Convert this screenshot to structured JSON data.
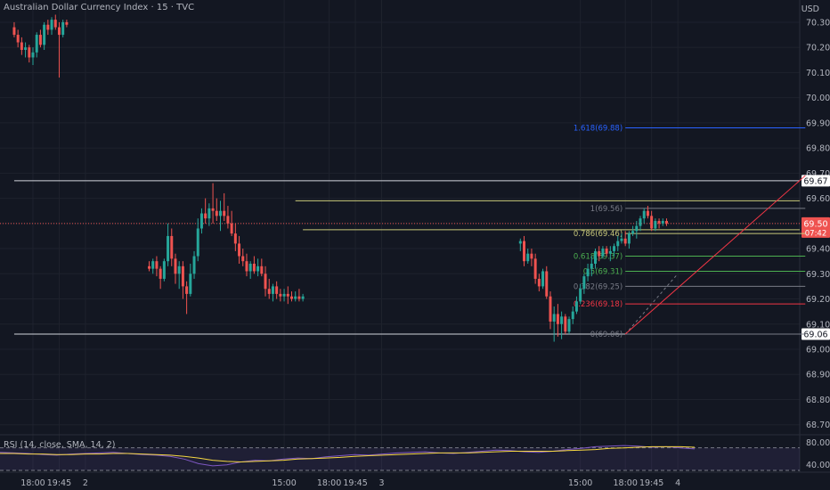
{
  "legend": {
    "symbol": "Australian Dollar Currency Index",
    "interval": "15",
    "exchange": "TVC",
    "separator": " · "
  },
  "currency": "USD",
  "rsi_legend": "RSI (14, close, SMA, 14, 2)",
  "colors": {
    "background": "#131722",
    "up": "#26a69a",
    "down": "#ef5350",
    "grid": "#1e222d",
    "axis_text": "#b2b5be",
    "fib_top": "#2962ff",
    "fib_yellow": "#c8c87a",
    "fib_green": "#4caf50",
    "fib_red": "#f23645",
    "trendline": "#f23645",
    "rsi_line": "#7e57c2",
    "rsi_ma": "#f5d742",
    "rsi_band": "#7e57c2"
  },
  "chart_data": {
    "type": "candlestick",
    "y_axis": {
      "range": [
        68.66,
        70.36
      ],
      "ticks": [
        "70.30",
        "70.20",
        "70.10",
        "70.00",
        "69.90",
        "69.80",
        "69.70",
        "69.60",
        "69.50",
        "69.40",
        "69.30",
        "69.20",
        "69.10",
        "69.00",
        "68.90",
        "68.80",
        "68.70"
      ]
    },
    "x_axis": {
      "ticks": [
        {
          "label": "18:00",
          "bar": 0
        },
        {
          "label": "19:45",
          "bar": 7
        },
        {
          "label": "2",
          "bar": 14
        },
        {
          "label": "15:00",
          "bar": 67
        },
        {
          "label": "18:00",
          "bar": 79
        },
        {
          "label": "19:45",
          "bar": 86
        },
        {
          "label": "3",
          "bar": 93
        },
        {
          "label": "15:00",
          "bar": 146
        },
        {
          "label": "18:00",
          "bar": 158
        },
        {
          "label": "19:45",
          "bar": 165
        },
        {
          "label": "4",
          "bar": 172
        }
      ]
    },
    "candles_segment1": {
      "start_bar": -5,
      "ohlc": [
        [
          70.28,
          70.3,
          70.24,
          70.25
        ],
        [
          70.25,
          70.27,
          70.2,
          70.22
        ],
        [
          70.22,
          70.24,
          70.17,
          70.19
        ],
        [
          70.19,
          70.22,
          70.16,
          70.2
        ],
        [
          70.2,
          70.21,
          70.14,
          70.16
        ],
        [
          70.16,
          70.2,
          70.13,
          70.18
        ],
        [
          70.18,
          70.26,
          70.16,
          70.25
        ],
        [
          70.25,
          70.27,
          70.2,
          70.21
        ],
        [
          70.21,
          70.3,
          70.19,
          70.29
        ],
        [
          70.29,
          70.31,
          70.25,
          70.27
        ],
        [
          70.27,
          70.32,
          70.25,
          70.31
        ],
        [
          70.31,
          70.33,
          70.27,
          70.28
        ],
        [
          70.28,
          70.3,
          70.08,
          70.25
        ],
        [
          70.25,
          70.31,
          70.24,
          70.3
        ],
        [
          70.3,
          70.31,
          70.28,
          70.29
        ]
      ]
    },
    "candles_segment2": {
      "start_bar": 31,
      "ohlc": [
        [
          69.33,
          69.35,
          69.31,
          69.32
        ],
        [
          69.32,
          69.36,
          69.3,
          69.35
        ],
        [
          69.35,
          69.37,
          69.29,
          69.32
        ],
        [
          69.32,
          69.33,
          69.24,
          69.28
        ],
        [
          69.28,
          69.36,
          69.27,
          69.35
        ],
        [
          69.35,
          69.5,
          69.33,
          69.45
        ],
        [
          69.45,
          69.48,
          69.33,
          69.36
        ],
        [
          69.36,
          69.38,
          69.26,
          69.3
        ],
        [
          69.3,
          69.35,
          69.24,
          69.33
        ],
        [
          69.33,
          69.35,
          69.2,
          69.25
        ],
        [
          69.25,
          69.27,
          69.14,
          69.22
        ],
        [
          69.22,
          69.34,
          69.21,
          69.3
        ],
        [
          69.3,
          69.39,
          69.28,
          69.37
        ],
        [
          69.37,
          69.52,
          69.35,
          69.48
        ],
        [
          69.48,
          69.56,
          69.46,
          69.54
        ],
        [
          69.54,
          69.6,
          69.5,
          69.52
        ],
        [
          69.52,
          69.58,
          69.49,
          69.56
        ],
        [
          69.56,
          69.66,
          69.5,
          69.55
        ],
        [
          69.55,
          69.6,
          69.51,
          69.53
        ],
        [
          69.53,
          69.59,
          69.47,
          69.55
        ],
        [
          69.55,
          69.62,
          69.51,
          69.53
        ],
        [
          69.53,
          69.57,
          69.48,
          69.5
        ],
        [
          69.5,
          69.55,
          69.45,
          69.46
        ],
        [
          69.46,
          69.5,
          69.39,
          69.42
        ],
        [
          69.42,
          69.45,
          69.34,
          69.37
        ],
        [
          69.37,
          69.4,
          69.33,
          69.35
        ],
        [
          69.35,
          69.38,
          69.29,
          69.31
        ],
        [
          69.31,
          69.35,
          69.28,
          69.34
        ],
        [
          69.34,
          69.37,
          69.3,
          69.31
        ],
        [
          69.31,
          69.36,
          69.29,
          69.33
        ],
        [
          69.33,
          69.36,
          69.29,
          69.3
        ],
        [
          69.3,
          69.33,
          69.21,
          69.24
        ],
        [
          69.24,
          69.28,
          69.2,
          69.22
        ],
        [
          69.22,
          69.26,
          69.19,
          69.25
        ],
        [
          69.25,
          69.27,
          69.2,
          69.22
        ],
        [
          69.22,
          69.24,
          69.19,
          69.21
        ],
        [
          69.21,
          69.24,
          69.19,
          69.22
        ],
        [
          69.22,
          69.25,
          69.18,
          69.21
        ],
        [
          69.21,
          69.23,
          69.19,
          69.2
        ],
        [
          69.2,
          69.23,
          69.19,
          69.21
        ],
        [
          69.21,
          69.24,
          69.19,
          69.2
        ],
        [
          69.2,
          69.22,
          69.19,
          69.21
        ]
      ]
    },
    "candles_segment3": {
      "start_bar": 130,
      "ohlc": [
        [
          69.42,
          69.44,
          69.39,
          69.43
        ],
        [
          69.43,
          69.45,
          69.33,
          69.35
        ],
        [
          69.35,
          69.4,
          69.34,
          69.38
        ],
        [
          69.38,
          69.4,
          69.33,
          69.36
        ],
        [
          69.36,
          69.38,
          69.26,
          69.28
        ],
        [
          69.28,
          69.3,
          69.23,
          69.25
        ],
        [
          69.25,
          69.32,
          69.24,
          69.31
        ],
        [
          69.31,
          69.33,
          69.2,
          69.21
        ],
        [
          69.21,
          69.23,
          69.08,
          69.11
        ],
        [
          69.11,
          69.17,
          69.03,
          69.14
        ],
        [
          69.14,
          69.18,
          69.05,
          69.1
        ],
        [
          69.1,
          69.15,
          69.04,
          69.13
        ],
        [
          69.13,
          69.14,
          69.06,
          69.07
        ],
        [
          69.07,
          69.13,
          69.06,
          69.12
        ],
        [
          69.12,
          69.17,
          69.1,
          69.15
        ],
        [
          69.15,
          69.21,
          69.14,
          69.19
        ],
        [
          69.19,
          69.26,
          69.18,
          69.24
        ],
        [
          69.24,
          69.3,
          69.22,
          69.29
        ],
        [
          69.29,
          69.34,
          69.27,
          69.32
        ],
        [
          69.32,
          69.37,
          69.29,
          69.34
        ],
        [
          69.34,
          69.4,
          69.32,
          69.39
        ],
        [
          69.39,
          69.41,
          69.35,
          69.37
        ],
        [
          69.37,
          69.41,
          69.36,
          69.4
        ],
        [
          69.4,
          69.41,
          69.37,
          69.38
        ],
        [
          69.38,
          69.41,
          69.35,
          69.39
        ],
        [
          69.39,
          69.42,
          69.37,
          69.41
        ],
        [
          69.41,
          69.45,
          69.39,
          69.43
        ],
        [
          69.43,
          69.46,
          69.42,
          69.44
        ],
        [
          69.44,
          69.47,
          69.41,
          69.42
        ],
        [
          69.42,
          69.47,
          69.4,
          69.46
        ],
        [
          69.46,
          69.49,
          69.45,
          69.47
        ],
        [
          69.47,
          69.51,
          69.44,
          69.49
        ],
        [
          69.49,
          69.53,
          69.47,
          69.52
        ],
        [
          69.52,
          69.56,
          69.5,
          69.55
        ],
        [
          69.55,
          69.57,
          69.52,
          69.53
        ],
        [
          69.53,
          69.55,
          69.47,
          69.48
        ],
        [
          69.48,
          69.52,
          69.47,
          69.51
        ],
        [
          69.51,
          69.52,
          69.48,
          69.5
        ],
        [
          69.5,
          69.52,
          69.49,
          69.51
        ],
        [
          69.51,
          69.52,
          69.49,
          69.5
        ]
      ]
    },
    "horizontal_levels": [
      {
        "price": 69.67,
        "label": "69.67",
        "color": "#d1d4dc",
        "from_bar": -5
      },
      {
        "price": 69.06,
        "label": "69.06",
        "color": "#d1d4dc",
        "from_bar": -5
      },
      {
        "price": 69.59,
        "color": "#c8c87a",
        "from_bar": 70
      },
      {
        "price": 69.475,
        "color": "#c8c87a",
        "from_bar": 72
      }
    ],
    "current_price": {
      "price": 69.5,
      "label": "69.50",
      "countdown": "07:42"
    },
    "fibonacci": {
      "from_bar": 158,
      "to_bar": 206,
      "levels": [
        {
          "ratio": "1.618",
          "price": 69.88,
          "text": "1.618(69.88)",
          "color": "#2962ff"
        },
        {
          "ratio": "1",
          "price": 69.56,
          "text": "1(69.56)",
          "color": "#787b86"
        },
        {
          "ratio": "0.786",
          "price": 69.46,
          "text": "0.786(69.46)",
          "color": "#c8c87a"
        },
        {
          "ratio": "0.618",
          "price": 69.37,
          "text": "0.618(69.37)",
          "color": "#4caf50"
        },
        {
          "ratio": "0.5",
          "price": 69.31,
          "text": "0.5(69.31)",
          "color": "#4caf50"
        },
        {
          "ratio": "0.382",
          "price": 69.25,
          "text": "0.382(69.25)",
          "color": "#787b86"
        },
        {
          "ratio": "0.236",
          "price": 69.18,
          "text": "0.236(69.18)",
          "color": "#f23645"
        },
        {
          "ratio": "0",
          "price": 69.06,
          "text": "0(69.06)",
          "color": "#787b86"
        }
      ]
    },
    "trendline": {
      "from": {
        "bar": 158,
        "price": 69.06
      },
      "to": {
        "bar": 206,
        "price": 69.69
      }
    },
    "fib_connector": {
      "from": {
        "bar": 158,
        "price": 69.06
      },
      "to": {
        "bar": 172,
        "price": 69.3
      }
    },
    "rsi": {
      "title": "RSI (14, close, SMA, 14, 2)",
      "range": [
        30,
        90
      ],
      "ticks": [
        "80.00",
        "40.00"
      ],
      "upper_band": 70,
      "lower_band": 30,
      "rsi_values": [
        62,
        61,
        60,
        58,
        57,
        59,
        60,
        61,
        62,
        60,
        58,
        57,
        55,
        50,
        42,
        38,
        40,
        45,
        48,
        47,
        50,
        52,
        51,
        54,
        56,
        58,
        57,
        59,
        61,
        62,
        63,
        61,
        60,
        62,
        64,
        66,
        65,
        63,
        62,
        64,
        67,
        69,
        72,
        73,
        74,
        73,
        71,
        72,
        70,
        68
      ],
      "ma_values": [
        60,
        60,
        59,
        59,
        58,
        58,
        59,
        59,
        60,
        60,
        59,
        58,
        57,
        55,
        52,
        48,
        46,
        45,
        46,
        47,
        48,
        50,
        51,
        52,
        53,
        55,
        56,
        57,
        58,
        59,
        60,
        61,
        61,
        61,
        62,
        63,
        64,
        64,
        64,
        64,
        65,
        66,
        67,
        69,
        70,
        71,
        72,
        72,
        72,
        71
      ]
    }
  }
}
